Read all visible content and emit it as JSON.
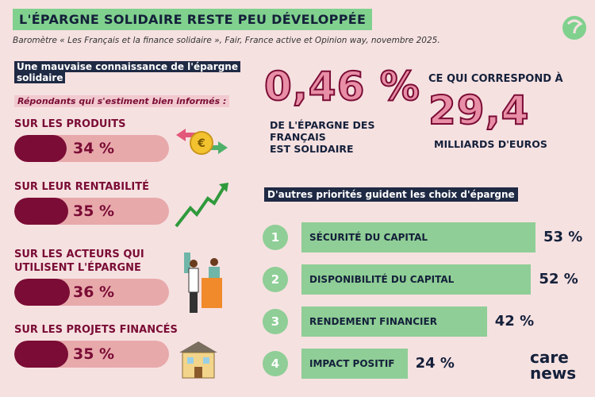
{
  "header": {
    "title": "L'ÉPARGNE SOLIDAIRE RESTE PEU DÉVELOPPÉE",
    "source": "Baromètre « Les Français et la finance solidaire », Fair, France active et Opinion way, novembre 2025."
  },
  "knowledge": {
    "title": "Une mauvaise connaissance de l'épargne solidaire",
    "subtitle": "Répondants qui s'estiment bien informés :",
    "items": [
      {
        "label": [
          "SUR LES PRODUITS"
        ],
        "value": 34,
        "value_label": "34 %"
      },
      {
        "label": [
          "SUR LEUR RENTABILITÉ"
        ],
        "value": 35,
        "value_label": "35 %"
      },
      {
        "label": [
          "SUR LES ACTEURS QUI",
          "UTILISENT L'ÉPARGNE"
        ],
        "value": 36,
        "value_label": "36 %"
      },
      {
        "label": [
          "SUR LES PROJETS FINANCÉS"
        ],
        "value": 35,
        "value_label": "35 %"
      }
    ]
  },
  "share": {
    "value_label": "0,46 %",
    "caption": [
      "DE L'ÉPARGNE DES",
      "FRANÇAIS",
      "EST SOLIDAIRE"
    ]
  },
  "amount": {
    "intro": "CE QUI CORRESPOND À",
    "value_label": "29,4",
    "caption": "MILLIARDS D'EUROS"
  },
  "priorities": {
    "title": "D'autres priorités guident les choix d'épargne",
    "items": [
      {
        "rank": "1",
        "label": "SÉCURITÉ DU CAPITAL",
        "value": 53,
        "value_label": "53 %"
      },
      {
        "rank": "2",
        "label": "DISPONIBILITÉ DU CAPITAL",
        "value": 52,
        "value_label": "52 %"
      },
      {
        "rank": "3",
        "label": "RENDEMENT FINANCIER",
        "value": 42,
        "value_label": "42 %"
      },
      {
        "rank": "4",
        "label": "IMPACT POSITIF",
        "value": 24,
        "value_label": "24 %"
      }
    ]
  },
  "logo": {
    "line1": "care",
    "line2": "news"
  }
}
